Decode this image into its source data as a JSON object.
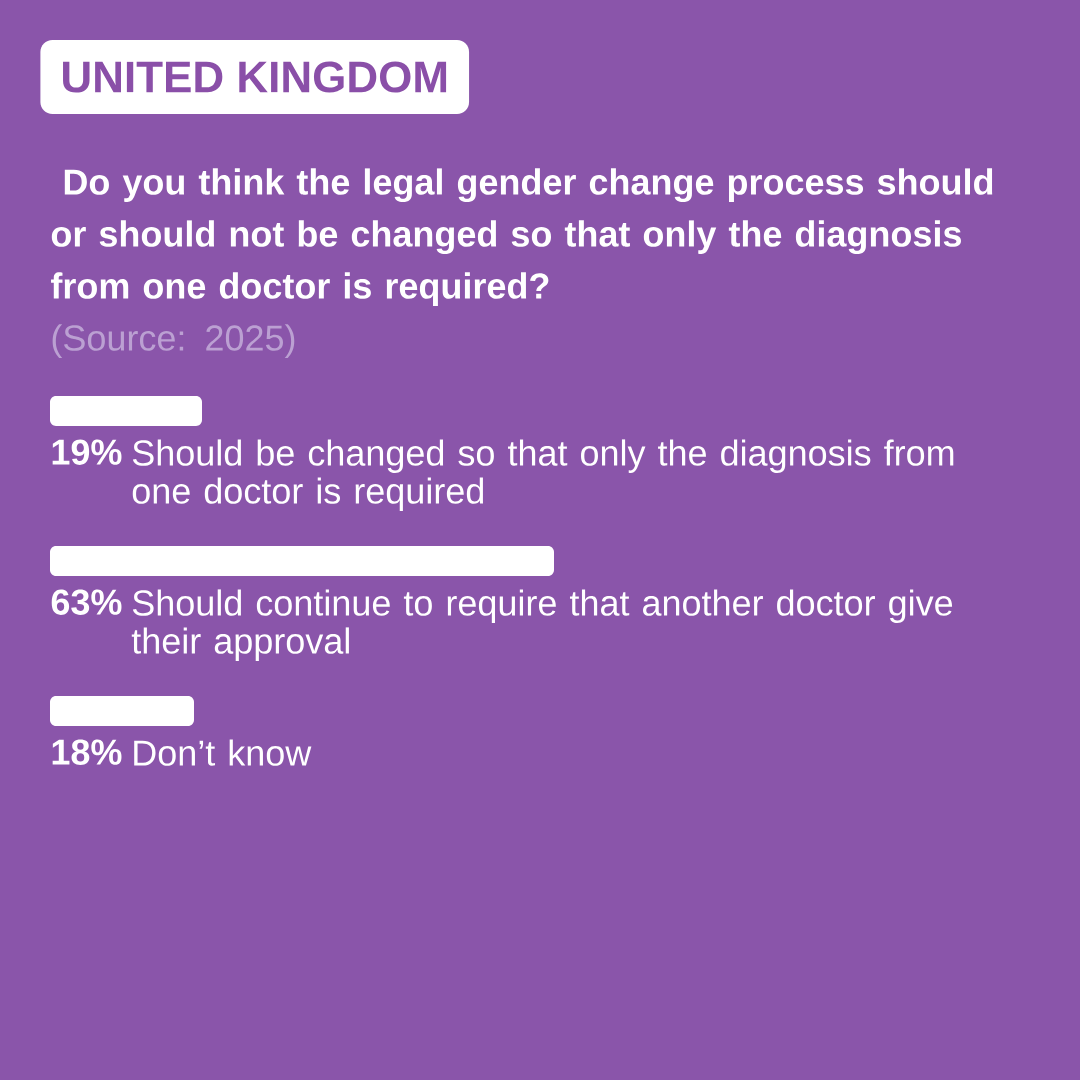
{
  "chart_data": {
    "type": "bar",
    "orientation": "horizontal",
    "title": "UNITED KINGDOM",
    "subtitle": " Do you think the legal gender change process should or should not be changed so that only the diagnosis from one doctor is required?",
    "annotations": [
      "(Source: 2025)"
    ],
    "categories": [
      "Should be changed so that only the diagnosis from one doctor is required",
      "Should continue to require that another doctor give their approval",
      "Don’t know"
    ],
    "values": [
      19,
      63,
      18
    ],
    "value_labels": [
      "19%",
      "63%",
      "18%"
    ],
    "color": "#ffffff"
  }
}
